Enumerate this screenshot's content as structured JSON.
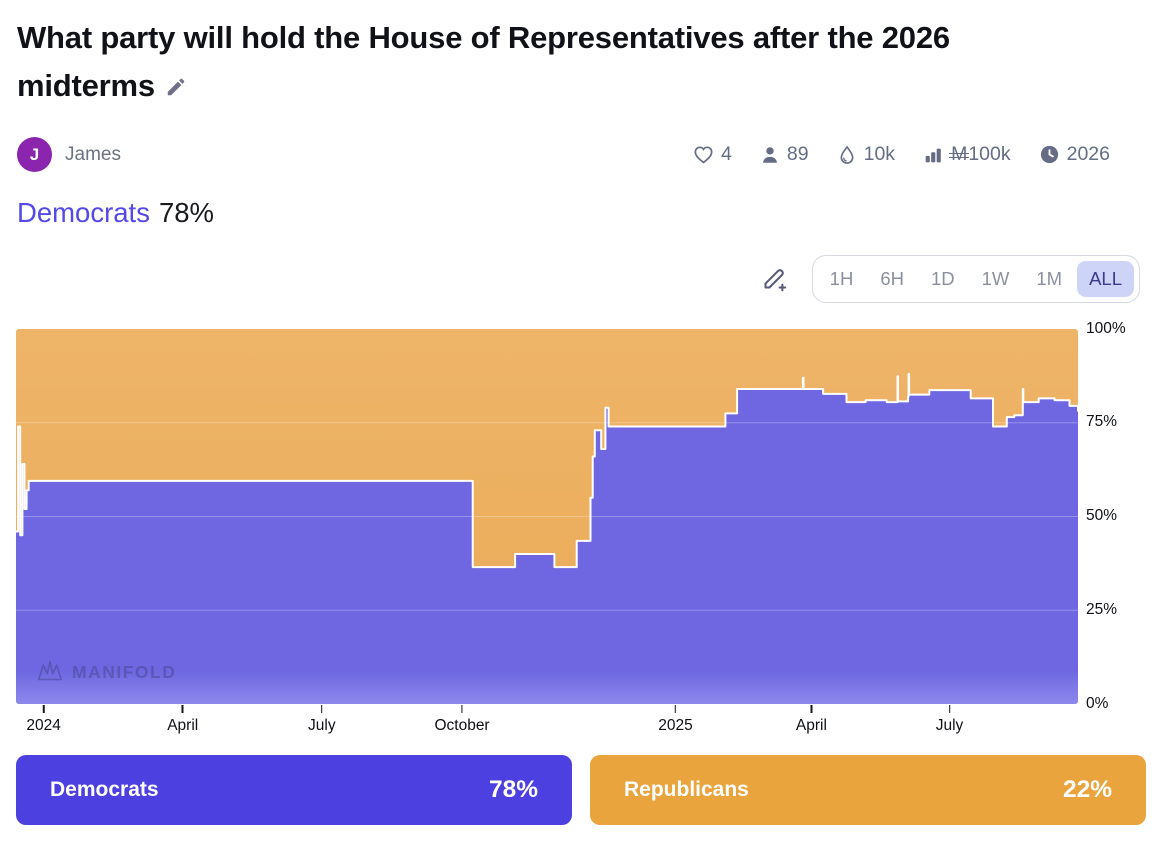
{
  "market": {
    "title": "What party will hold the House of Representatives after the 2026 midterms",
    "leading_answer": "Democrats",
    "leading_prob": "78%"
  },
  "creator": {
    "initial": "J",
    "name": "James",
    "avatar_color": "#8b25ae"
  },
  "stats": {
    "likes": "4",
    "traders": "89",
    "liquidity": "10k",
    "volume_currency": "M",
    "volume": "100k",
    "closes": "2026"
  },
  "controls": {
    "ranges": [
      "1H",
      "6H",
      "1D",
      "1W",
      "1M",
      "ALL"
    ],
    "selected_range": "ALL"
  },
  "chart_data": {
    "type": "area",
    "stacked": true,
    "ylim": [
      0,
      100
    ],
    "y_ticks": [
      {
        "pct": 100,
        "label": "100%"
      },
      {
        "pct": 75,
        "label": "75%"
      },
      {
        "pct": 50,
        "label": "50%"
      },
      {
        "pct": 25,
        "label": "25%"
      },
      {
        "pct": 0,
        "label": "0%"
      }
    ],
    "gridlines_pct": [
      25,
      50,
      75
    ],
    "x_ticks": [
      {
        "pos": 0.026,
        "label": "2024"
      },
      {
        "pos": 0.157,
        "label": "April"
      },
      {
        "pos": 0.288,
        "label": "July"
      },
      {
        "pos": 0.42,
        "label": "October"
      },
      {
        "pos": 0.621,
        "label": "2025"
      },
      {
        "pos": 0.749,
        "label": "April"
      },
      {
        "pos": 0.879,
        "label": "July"
      }
    ],
    "boundary_stroke": "#ffffff",
    "watermark": "MANIFOLD",
    "series": [
      {
        "name": "Democrats",
        "color": "#6e67e1",
        "color_bottom": "#8d88ec",
        "points": [
          [
            0.0,
            46
          ],
          [
            0.002,
            74
          ],
          [
            0.004,
            45
          ],
          [
            0.006,
            64
          ],
          [
            0.008,
            52
          ],
          [
            0.01,
            57
          ],
          [
            0.012,
            59.5
          ],
          [
            0.43,
            36.5
          ],
          [
            0.47,
            40
          ],
          [
            0.507,
            36.5
          ],
          [
            0.528,
            43.5
          ],
          [
            0.541,
            55
          ],
          [
            0.543,
            66
          ],
          [
            0.545,
            73
          ],
          [
            0.551,
            68
          ],
          [
            0.555,
            79
          ],
          [
            0.558,
            74
          ],
          [
            0.668,
            77.5
          ],
          [
            0.679,
            84
          ],
          [
            0.741,
            87
          ],
          [
            0.7415,
            84
          ],
          [
            0.76,
            82.7
          ],
          [
            0.782,
            80.5
          ],
          [
            0.8,
            81
          ],
          [
            0.82,
            80.5
          ],
          [
            0.83,
            87.4
          ],
          [
            0.8305,
            80.7
          ],
          [
            0.84,
            82
          ],
          [
            0.8405,
            88
          ],
          [
            0.841,
            82.5
          ],
          [
            0.86,
            83.7
          ],
          [
            0.899,
            81.5
          ],
          [
            0.92,
            74
          ],
          [
            0.933,
            76.5
          ],
          [
            0.94,
            77
          ],
          [
            0.948,
            84
          ],
          [
            0.9485,
            80.5
          ],
          [
            0.963,
            81.5
          ],
          [
            0.978,
            81
          ],
          [
            0.992,
            79.5
          ],
          [
            1.0,
            78
          ]
        ]
      },
      {
        "name": "Republicans",
        "color": "#eeb468",
        "color_bottom": "#e9ab57",
        "complement_of_first_series": true
      }
    ]
  },
  "answers": [
    {
      "label": "Democrats",
      "prob": "78%",
      "color": "#4d40e0"
    },
    {
      "label": "Republicans",
      "prob": "22%",
      "color": "#e9a43e"
    }
  ]
}
